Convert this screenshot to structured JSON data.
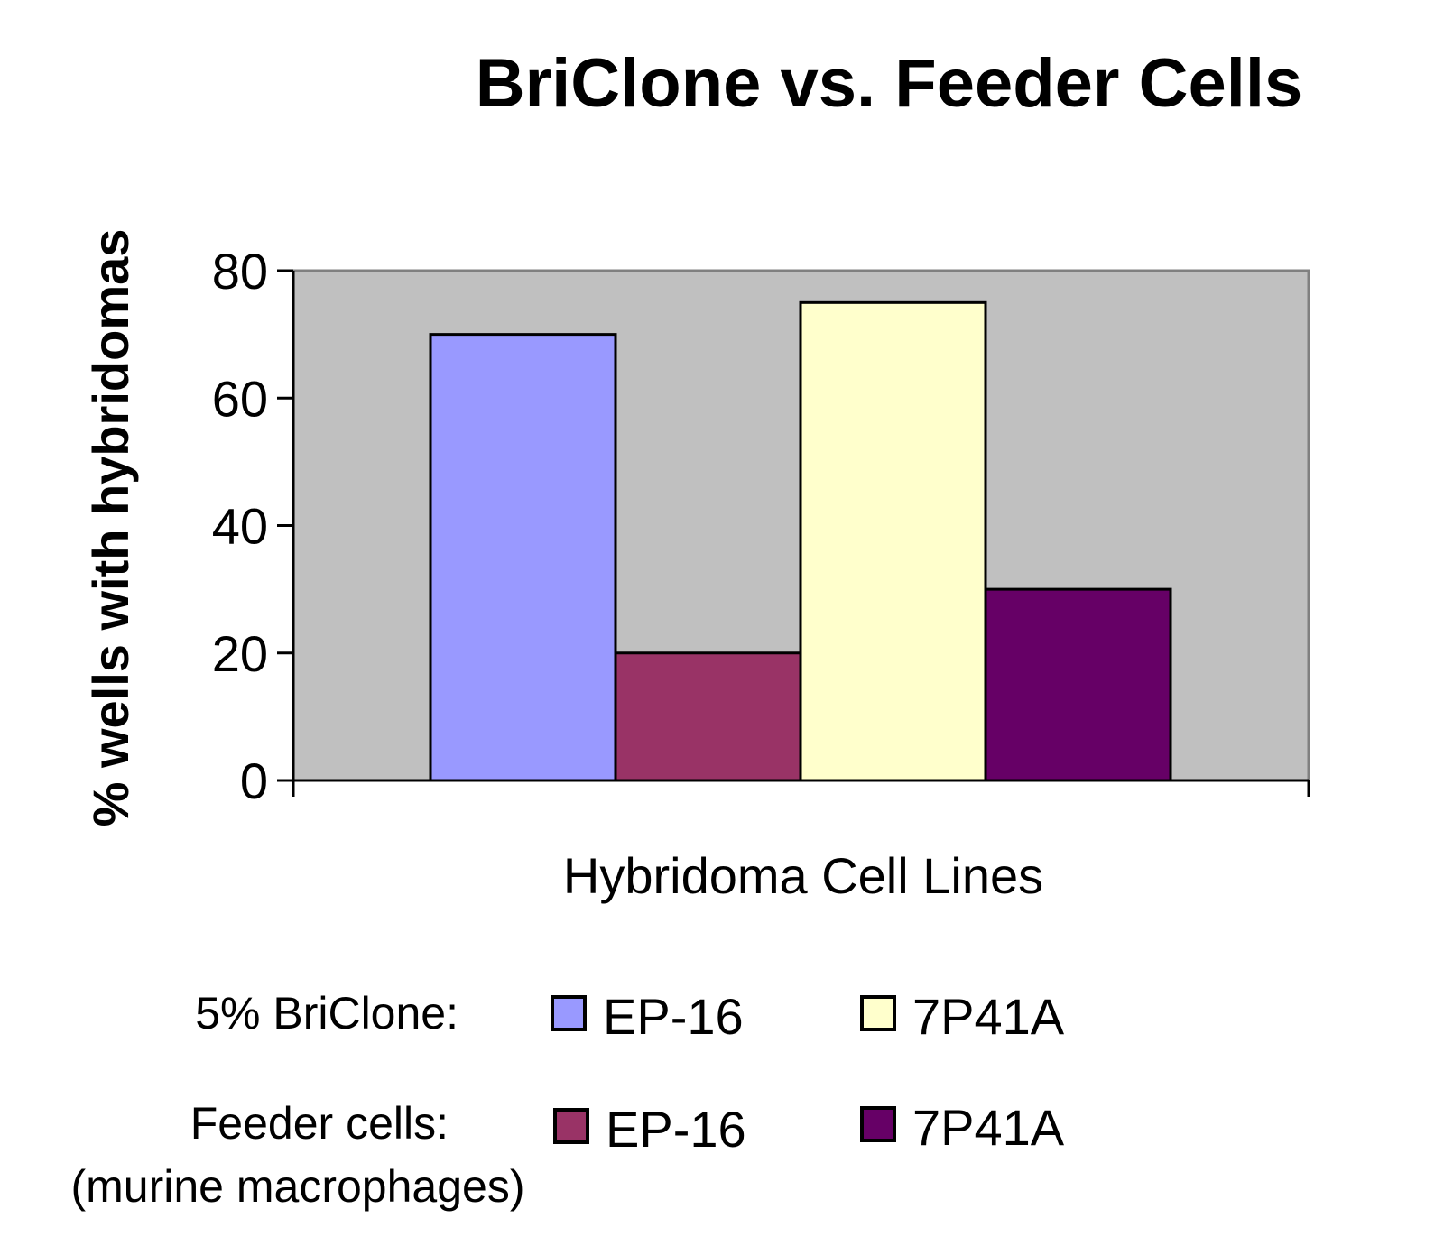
{
  "chart_data": {
    "type": "bar",
    "title": "BriClone vs. Feeder Cells",
    "xlabel": "Hybridoma Cell Lines",
    "ylabel": "% wells with hybridomas",
    "ylim": [
      0,
      80
    ],
    "yticks": [
      0,
      20,
      40,
      60,
      80
    ],
    "grid": false,
    "plot_background": "#c0c0c0",
    "series": [
      {
        "name": "EP-16",
        "group": "5% BriClone:",
        "value": 70,
        "color": "#9999ff"
      },
      {
        "name": "EP-16",
        "group": "Feeder cells:",
        "value": 20,
        "color": "#993366"
      },
      {
        "name": "7P41A",
        "group": "5% BriClone:",
        "value": 75,
        "color": "#ffffcc"
      },
      {
        "name": "7P41A",
        "group": "Feeder cells:",
        "value": 30,
        "color": "#660066"
      }
    ]
  },
  "legend": {
    "placement": "bottom",
    "rows": [
      {
        "label": "5% BriClone:",
        "sublabel": "",
        "entries": [
          {
            "text": "EP-16",
            "color": "#9999ff"
          },
          {
            "text": "7P41A",
            "color": "#ffffcc"
          }
        ]
      },
      {
        "label": "Feeder cells:",
        "sublabel": "(murine macrophages)",
        "entries": [
          {
            "text": "EP-16",
            "color": "#993366"
          },
          {
            "text": "7P41A",
            "color": "#660066"
          }
        ]
      }
    ]
  }
}
